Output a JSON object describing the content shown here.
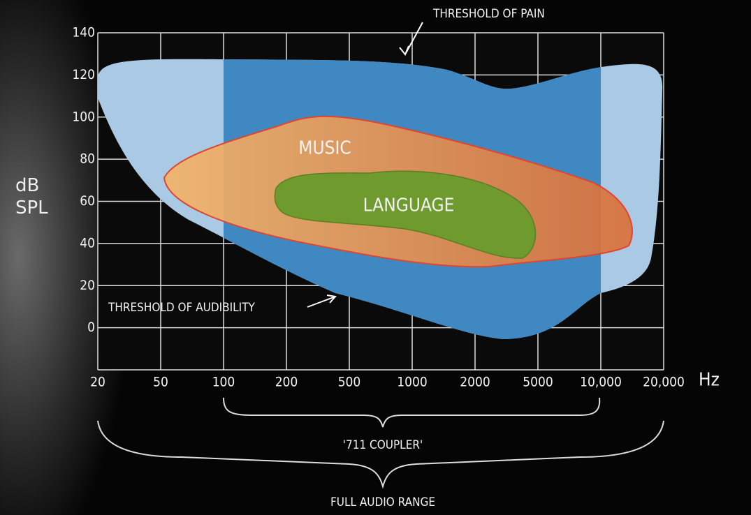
{
  "chart_data": {
    "type": "area",
    "annotations": {
      "pain": "THRESHOLD OF PAIN",
      "audibility": "THRESHOLD OF AUDIBILITY",
      "music": "MUSIC",
      "language": "LANGUAGE",
      "coupler": "'711 COUPLER'",
      "full_range": "FULL AUDIO RANGE"
    },
    "y_label": "dB SPL",
    "x_label": "Hz",
    "categories": [
      "20",
      "50",
      "100",
      "200",
      "500",
      "1000",
      "2000",
      "5000",
      "10,000",
      "20,000"
    ],
    "ylim": [
      -20,
      140
    ],
    "yticks": [
      0,
      20,
      40,
      60,
      80,
      100,
      120,
      140
    ],
    "grid": true
  }
}
